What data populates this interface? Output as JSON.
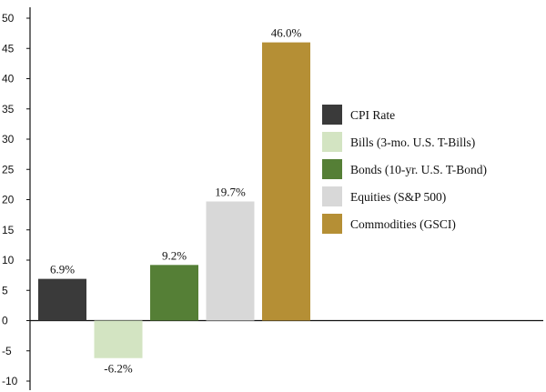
{
  "chart_data": {
    "type": "bar",
    "categories": [
      "CPI Rate",
      "Bills (3-mo. U.S. T-Bills)",
      "Bonds (10-yr. U.S. T-Bond)",
      "Equities (S&P 500)",
      "Commodities (GSCI)"
    ],
    "values": [
      6.9,
      -6.2,
      9.2,
      19.7,
      46.0
    ],
    "value_labels": [
      "6.9%",
      "-6.2%",
      "9.2%",
      "19.7%",
      "46.0%"
    ],
    "colors": [
      "#3a3a3a",
      "#d3e4c2",
      "#557f36",
      "#d8d8d8",
      "#b58f35"
    ],
    "ylim": [
      -10,
      50
    ],
    "yticks": [
      -10,
      -5,
      0,
      5,
      10,
      15,
      20,
      25,
      30,
      35,
      40,
      45,
      50
    ],
    "ytick_labels": [
      "-10",
      "-5",
      "0",
      "5",
      "10",
      "15",
      "20",
      "25",
      "30",
      "35",
      "40",
      "45",
      "50"
    ],
    "legend": {
      "position": "right",
      "items": [
        "CPI Rate",
        "Bills (3-mo. U.S. T-Bills)",
        "Bonds (10-yr. U.S. T-Bond)",
        "Equities (S&P 500)",
        "Commodities (GSCI)"
      ]
    },
    "grid": false
  }
}
